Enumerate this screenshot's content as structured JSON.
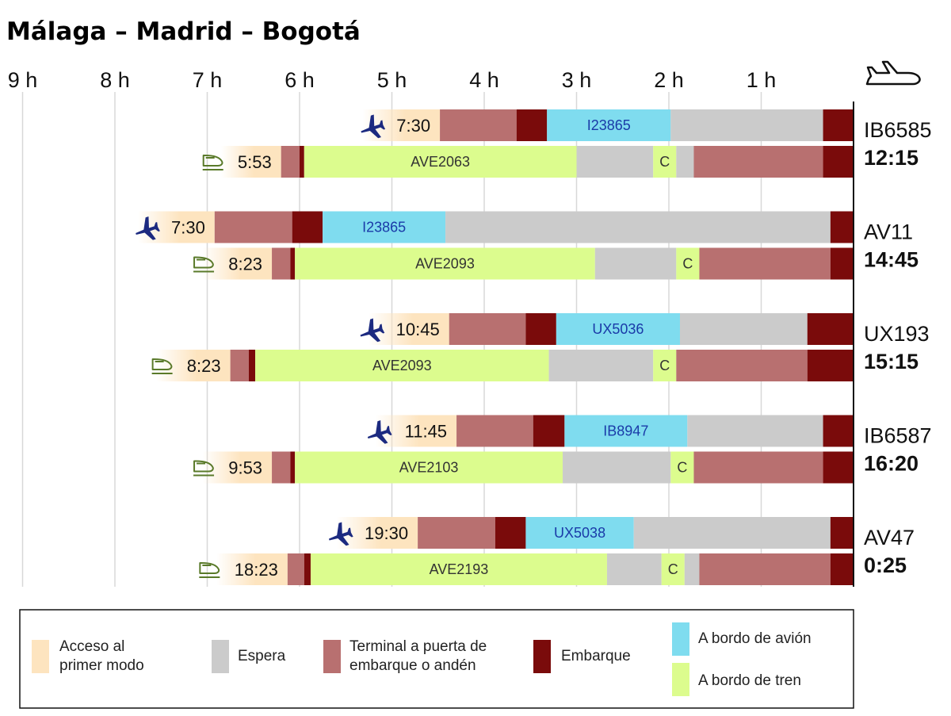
{
  "title": "Málaga – Madrid – Bogotá",
  "colors": {
    "access": "#fde4bf",
    "wait": "#cbcbcb",
    "terminal": "#b87070",
    "boarding": "#7a0b0b",
    "plane": "#7fdcef",
    "train": "#dcfc8e",
    "plane_icon": "#1c2a80",
    "train_icon": "#5a7a2a"
  },
  "legend": [
    {
      "key": "access",
      "label": [
        "Acceso al",
        "primer modo"
      ]
    },
    {
      "key": "wait",
      "label": [
        "Espera"
      ]
    },
    {
      "key": "terminal",
      "label": [
        "Terminal a puerta de",
        "embarque o andén"
      ]
    },
    {
      "key": "boarding",
      "label": [
        "Embarque"
      ]
    },
    {
      "key": "plane",
      "label": [
        "A bordo de avión"
      ]
    },
    {
      "key": "train",
      "label": [
        "A bordo de tren"
      ]
    }
  ],
  "chart_data": {
    "type": "stacked-horizontal-bar (timeline)",
    "title": "Málaga – Madrid – Bogotá",
    "x_axis": {
      "unit": "hours before connecting flight departure",
      "range": [
        9.15,
        0
      ],
      "ticks": [
        {
          "value": 9,
          "label": "9 h"
        },
        {
          "value": 8,
          "label": "8 h"
        },
        {
          "value": 7,
          "label": "7 h"
        },
        {
          "value": 6,
          "label": "6 h"
        },
        {
          "value": 5,
          "label": "5 h"
        },
        {
          "value": 4,
          "label": "4 h"
        },
        {
          "value": 3,
          "label": "3 h"
        },
        {
          "value": 2,
          "label": "2 h"
        },
        {
          "value": 1,
          "label": "1 h"
        }
      ]
    },
    "groups": [
      {
        "connection": "IB6585",
        "departure": "12:15",
        "bars": [
          {
            "mode": "plane",
            "start": "7:30",
            "segments": [
              {
                "type": "access",
                "from": 5.32,
                "to": 4.48
              },
              {
                "type": "terminal",
                "from": 4.48,
                "to": 3.65
              },
              {
                "type": "boarding",
                "from": 3.65,
                "to": 3.32
              },
              {
                "type": "plane",
                "from": 3.32,
                "to": 1.98,
                "label": "I23865"
              },
              {
                "type": "wait",
                "from": 1.98,
                "to": 0.33
              },
              {
                "type": "boarding",
                "from": 0.33,
                "to": 0
              }
            ]
          },
          {
            "mode": "train",
            "start": "5:53",
            "segments": [
              {
                "type": "access",
                "from": 6.85,
                "to": 6.2
              },
              {
                "type": "terminal",
                "from": 6.2,
                "to": 6.0
              },
              {
                "type": "boarding",
                "from": 6.0,
                "to": 5.95
              },
              {
                "type": "train",
                "from": 5.95,
                "to": 3.0,
                "label": "AVE2063"
              },
              {
                "type": "wait",
                "from": 3.0,
                "to": 2.17
              },
              {
                "type": "train",
                "from": 2.17,
                "to": 1.92,
                "label": "C"
              },
              {
                "type": "wait",
                "from": 1.92,
                "to": 1.73
              },
              {
                "type": "terminal",
                "from": 1.73,
                "to": 0.33
              },
              {
                "type": "boarding",
                "from": 0.33,
                "to": 0
              }
            ]
          }
        ]
      },
      {
        "connection": "AV11",
        "departure": "14:45",
        "bars": [
          {
            "mode": "plane",
            "start": "7:30",
            "segments": [
              {
                "type": "access",
                "from": 7.75,
                "to": 6.92
              },
              {
                "type": "terminal",
                "from": 6.92,
                "to": 6.08
              },
              {
                "type": "boarding",
                "from": 6.08,
                "to": 5.75
              },
              {
                "type": "plane",
                "from": 5.75,
                "to": 4.42,
                "label": "I23865"
              },
              {
                "type": "wait",
                "from": 4.42,
                "to": 0.25
              },
              {
                "type": "boarding",
                "from": 0.25,
                "to": 0
              }
            ]
          },
          {
            "mode": "train",
            "start": "8:23",
            "segments": [
              {
                "type": "access",
                "from": 7.05,
                "to": 6.3
              },
              {
                "type": "terminal",
                "from": 6.3,
                "to": 6.1
              },
              {
                "type": "boarding",
                "from": 6.1,
                "to": 6.05
              },
              {
                "type": "train",
                "from": 6.05,
                "to": 2.8,
                "label": "AVE2093"
              },
              {
                "type": "wait",
                "from": 2.8,
                "to": 1.92
              },
              {
                "type": "train",
                "from": 1.92,
                "to": 1.67,
                "label": "C"
              },
              {
                "type": "terminal",
                "from": 1.67,
                "to": 0.25
              },
              {
                "type": "boarding",
                "from": 0.25,
                "to": 0
              }
            ]
          }
        ]
      },
      {
        "connection": "UX193",
        "departure": "15:15",
        "bars": [
          {
            "mode": "plane",
            "start": "10:45",
            "segments": [
              {
                "type": "access",
                "from": 5.25,
                "to": 4.38
              },
              {
                "type": "terminal",
                "from": 4.38,
                "to": 3.55
              },
              {
                "type": "boarding",
                "from": 3.55,
                "to": 3.22
              },
              {
                "type": "plane",
                "from": 3.22,
                "to": 1.88,
                "label": "UX5036"
              },
              {
                "type": "wait",
                "from": 1.88,
                "to": 0.5
              },
              {
                "type": "boarding",
                "from": 0.5,
                "to": 0
              }
            ]
          },
          {
            "mode": "train",
            "start": "8:23",
            "segments": [
              {
                "type": "access",
                "from": 7.55,
                "to": 6.75
              },
              {
                "type": "terminal",
                "from": 6.75,
                "to": 6.55
              },
              {
                "type": "boarding",
                "from": 6.55,
                "to": 6.48
              },
              {
                "type": "train",
                "from": 6.48,
                "to": 3.3,
                "label": "AVE2093"
              },
              {
                "type": "wait",
                "from": 3.3,
                "to": 2.17
              },
              {
                "type": "train",
                "from": 2.17,
                "to": 1.92,
                "label": "C"
              },
              {
                "type": "terminal",
                "from": 1.92,
                "to": 0.5
              },
              {
                "type": "boarding",
                "from": 0.5,
                "to": 0
              }
            ]
          }
        ]
      },
      {
        "connection": "IB6587",
        "departure": "16:20",
        "bars": [
          {
            "mode": "plane",
            "start": "11:45",
            "segments": [
              {
                "type": "access",
                "from": 5.18,
                "to": 4.3
              },
              {
                "type": "terminal",
                "from": 4.3,
                "to": 3.47
              },
              {
                "type": "boarding",
                "from": 3.47,
                "to": 3.13
              },
              {
                "type": "plane",
                "from": 3.13,
                "to": 1.8,
                "label": "IB8947"
              },
              {
                "type": "wait",
                "from": 1.8,
                "to": 0.33
              },
              {
                "type": "boarding",
                "from": 0.33,
                "to": 0
              }
            ]
          },
          {
            "mode": "train",
            "start": "9:53",
            "segments": [
              {
                "type": "access",
                "from": 7.05,
                "to": 6.3
              },
              {
                "type": "terminal",
                "from": 6.3,
                "to": 6.1
              },
              {
                "type": "boarding",
                "from": 6.1,
                "to": 6.05
              },
              {
                "type": "train",
                "from": 6.05,
                "to": 3.15,
                "label": "AVE2103"
              },
              {
                "type": "wait",
                "from": 3.15,
                "to": 1.98
              },
              {
                "type": "train",
                "from": 1.98,
                "to": 1.73,
                "label": "C"
              },
              {
                "type": "terminal",
                "from": 1.73,
                "to": 0.33
              },
              {
                "type": "boarding",
                "from": 0.33,
                "to": 0
              }
            ]
          }
        ]
      },
      {
        "connection": "AV47",
        "departure": "0:25",
        "bars": [
          {
            "mode": "plane",
            "start": "19:30",
            "segments": [
              {
                "type": "access",
                "from": 5.6,
                "to": 4.72
              },
              {
                "type": "terminal",
                "from": 4.72,
                "to": 3.88
              },
              {
                "type": "boarding",
                "from": 3.88,
                "to": 3.55
              },
              {
                "type": "plane",
                "from": 3.55,
                "to": 2.38,
                "label": "UX5038"
              },
              {
                "type": "wait",
                "from": 2.38,
                "to": 0.25
              },
              {
                "type": "boarding",
                "from": 0.25,
                "to": 0
              }
            ]
          },
          {
            "mode": "train",
            "start": "18:23",
            "segments": [
              {
                "type": "access",
                "from": 6.9,
                "to": 6.13
              },
              {
                "type": "terminal",
                "from": 6.13,
                "to": 5.95
              },
              {
                "type": "boarding",
                "from": 5.95,
                "to": 5.88
              },
              {
                "type": "train",
                "from": 5.88,
                "to": 2.67,
                "label": "AVE2193"
              },
              {
                "type": "wait",
                "from": 2.67,
                "to": 2.08
              },
              {
                "type": "train",
                "from": 2.08,
                "to": 1.83,
                "label": "C"
              },
              {
                "type": "wait",
                "from": 1.83,
                "to": 1.67
              },
              {
                "type": "terminal",
                "from": 1.67,
                "to": 0.25
              },
              {
                "type": "boarding",
                "from": 0.25,
                "to": 0
              }
            ]
          }
        ]
      }
    ]
  }
}
